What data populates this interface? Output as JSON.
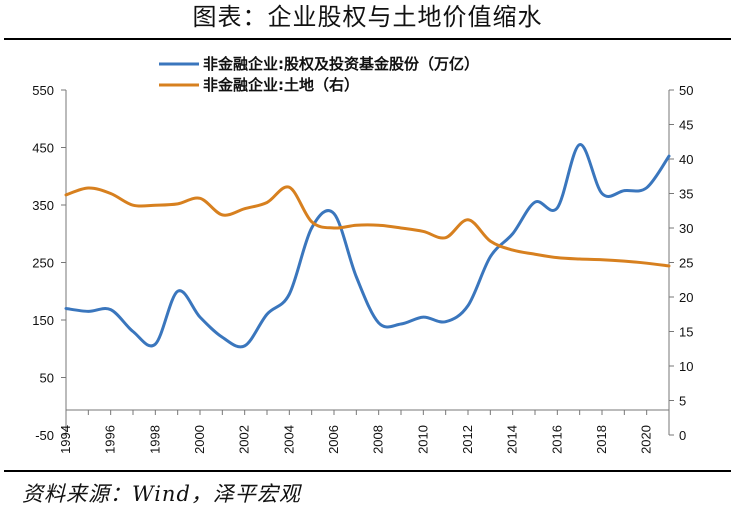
{
  "title": "图表：企业股权与土地价值缩水",
  "source": "资料来源：Wind，泽平宏观",
  "chart_data": {
    "type": "line",
    "title": "图表：企业股权与土地价值缩水",
    "x": [
      1994,
      1995,
      1996,
      1997,
      1998,
      1999,
      2000,
      2001,
      2002,
      2003,
      2004,
      2005,
      2006,
      2007,
      2008,
      2009,
      2010,
      2011,
      2012,
      2013,
      2014,
      2015,
      2016,
      2017,
      2018,
      2019,
      2020,
      2021
    ],
    "xticks": [
      "1994",
      "1996",
      "1998",
      "2000",
      "2002",
      "2004",
      "2006",
      "2008",
      "2010",
      "2012",
      "2014",
      "2016",
      "2018",
      "2020"
    ],
    "y_left": {
      "ticks": [
        "550",
        "450",
        "350",
        "250",
        "150",
        "50",
        "-50"
      ],
      "lim": [
        -50,
        550
      ]
    },
    "y_right": {
      "ticks": [
        "50",
        "45",
        "40",
        "35",
        "30",
        "25",
        "20",
        "15",
        "10",
        "5",
        "0"
      ],
      "lim": [
        0,
        50
      ]
    },
    "grid": false,
    "legend_position": "top",
    "series": [
      {
        "name": "非金融企业:股权及投资基金股份（万亿）",
        "axis": "left",
        "color": "#3a76bd",
        "values": [
          170,
          165,
          168,
          130,
          108,
          200,
          155,
          120,
          105,
          160,
          195,
          310,
          335,
          225,
          145,
          143,
          155,
          147,
          175,
          260,
          300,
          355,
          345,
          455,
          370,
          375,
          380,
          435
        ]
      },
      {
        "name": "非金融企业:土地（右）",
        "axis": "right",
        "color": "#d7801f",
        "values": [
          34.8,
          35.8,
          35.0,
          33.3,
          33.3,
          33.5,
          34.3,
          31.9,
          32.8,
          33.7,
          35.9,
          30.9,
          30.0,
          30.4,
          30.4,
          30.0,
          29.5,
          28.6,
          31.2,
          28.1,
          26.8,
          26.2,
          25.7,
          25.5,
          25.4,
          25.2,
          24.9,
          24.5
        ]
      }
    ]
  }
}
